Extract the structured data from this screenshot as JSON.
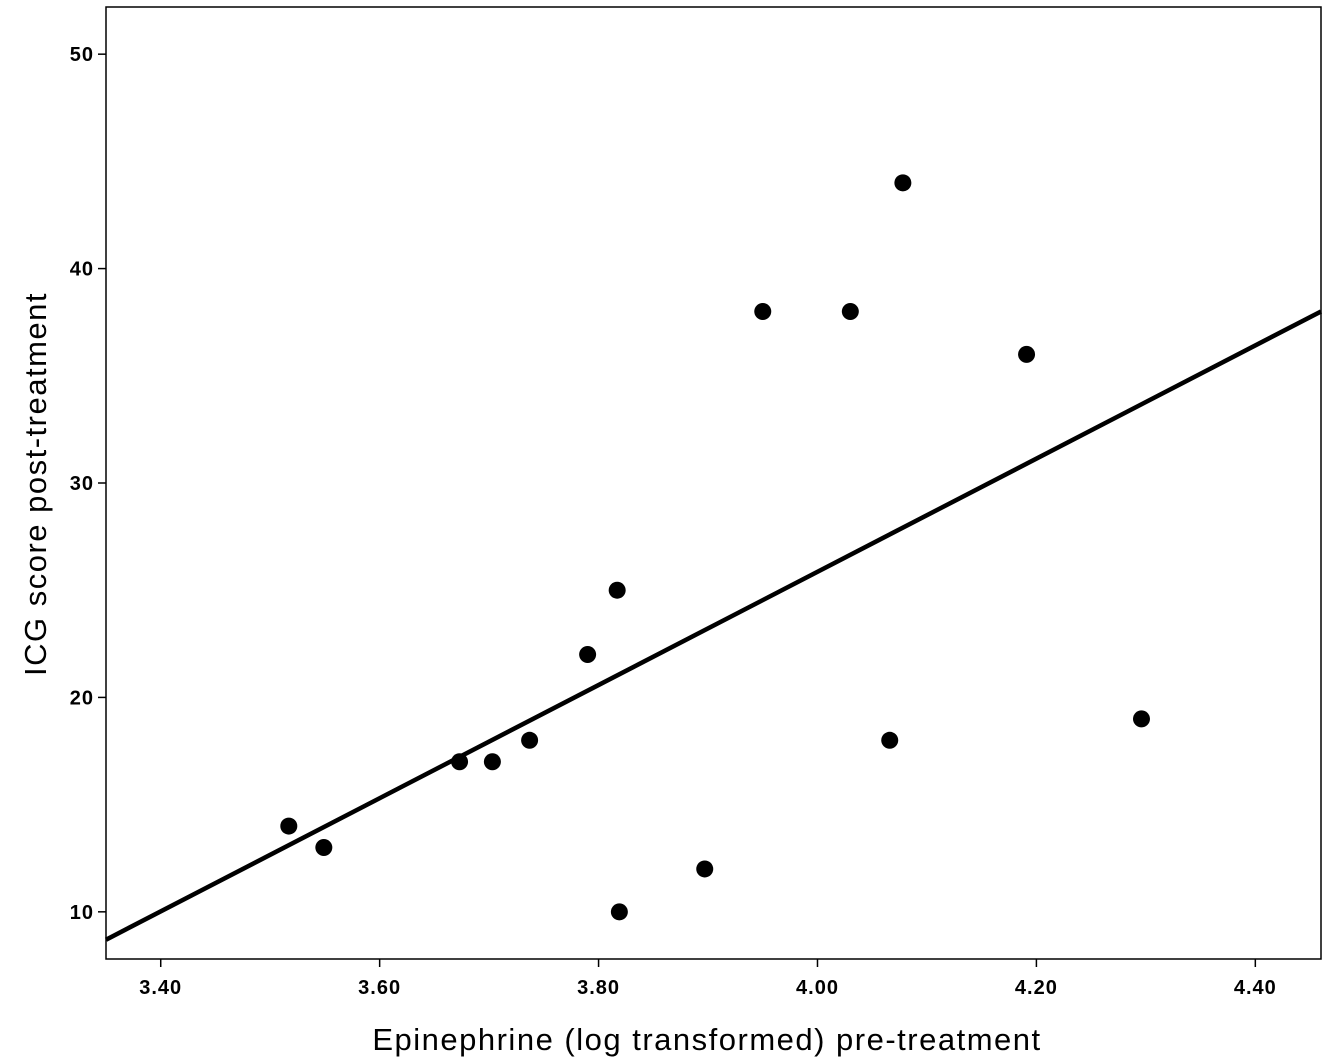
{
  "chart_data": {
    "type": "scatter",
    "title": "",
    "xlabel": "Epinephrine (log transformed) pre-treatment",
    "ylabel": "ICG score post-treatment",
    "xlim": [
      3.35,
      4.46
    ],
    "ylim": [
      7.8,
      52.2
    ],
    "x_ticks": [
      3.4,
      3.6,
      3.8,
      4.0,
      4.2,
      4.4
    ],
    "x_tick_labels": [
      "3.40",
      "3.60",
      "3.80",
      "4.00",
      "4.20",
      "4.40"
    ],
    "y_ticks": [
      10,
      20,
      30,
      40,
      50
    ],
    "y_tick_labels": [
      "10",
      "20",
      "30",
      "40",
      "50"
    ],
    "grid": false,
    "legend": "none",
    "colors": {
      "points": "#000000",
      "fit_line": "#000000",
      "axes": "#000000"
    },
    "points": [
      {
        "x": 3.517,
        "y": 14
      },
      {
        "x": 3.549,
        "y": 13
      },
      {
        "x": 3.673,
        "y": 17
      },
      {
        "x": 3.703,
        "y": 17
      },
      {
        "x": 3.737,
        "y": 18
      },
      {
        "x": 3.79,
        "y": 22
      },
      {
        "x": 3.817,
        "y": 25
      },
      {
        "x": 3.819,
        "y": 10
      },
      {
        "x": 3.897,
        "y": 12
      },
      {
        "x": 3.95,
        "y": 38
      },
      {
        "x": 4.03,
        "y": 38
      },
      {
        "x": 4.066,
        "y": 18
      },
      {
        "x": 4.078,
        "y": 44
      },
      {
        "x": 4.191,
        "y": 36
      },
      {
        "x": 4.296,
        "y": 19
      }
    ],
    "fit_line": {
      "type": "linear",
      "x": [
        3.35,
        4.46
      ],
      "y": [
        8.7,
        38.0
      ]
    }
  }
}
